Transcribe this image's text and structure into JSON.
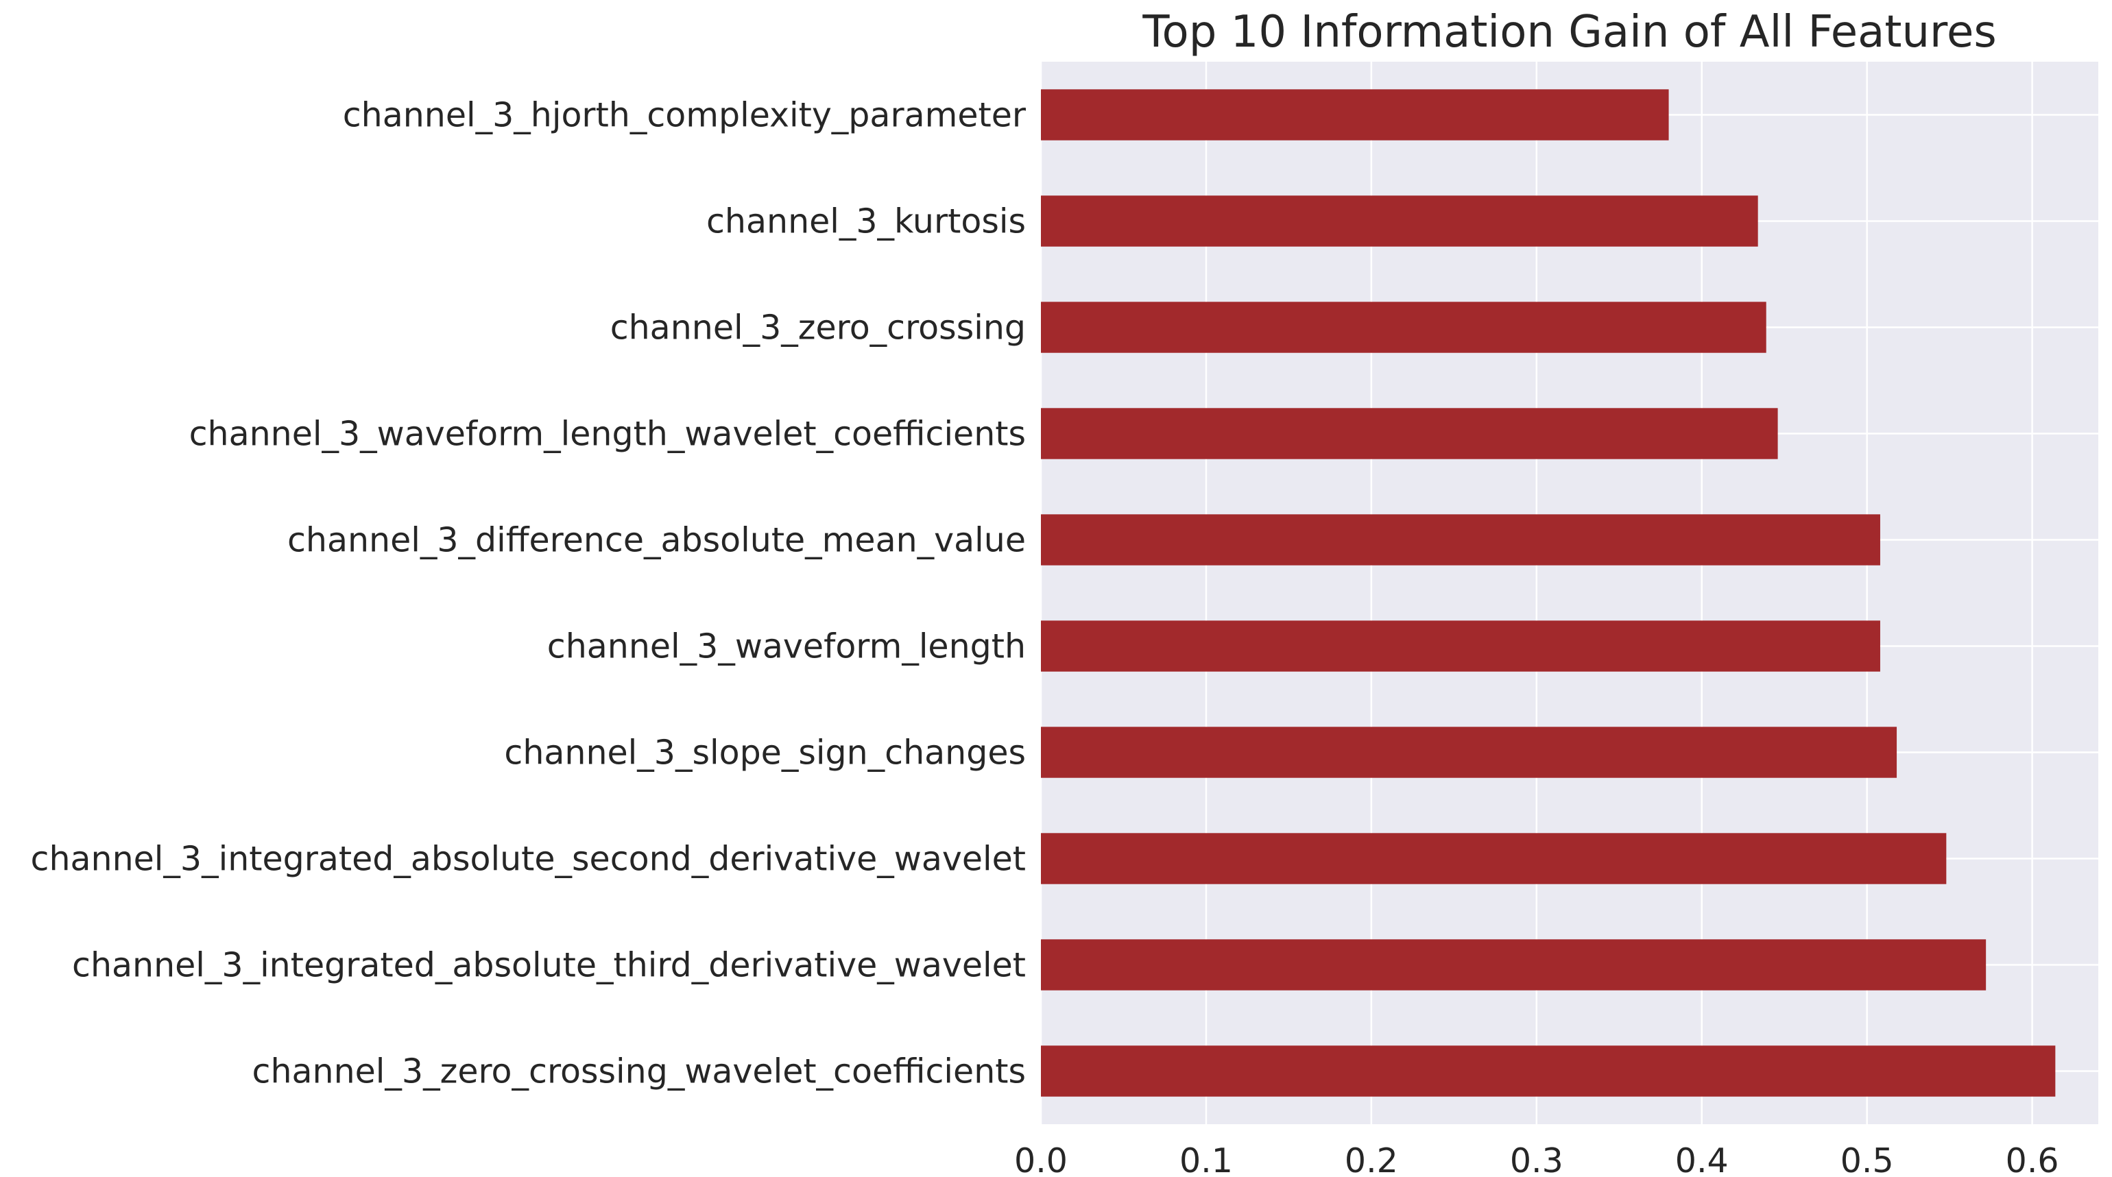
{
  "chart_data": {
    "type": "bar",
    "orientation": "horizontal",
    "title": "Top 10 Information Gain of All Features",
    "xlabel": "",
    "ylabel": "",
    "xlim": [
      0,
      0.64
    ],
    "xticks": [
      "0.0",
      "0.1",
      "0.2",
      "0.3",
      "0.4",
      "0.5",
      "0.6"
    ],
    "grid": true,
    "categories": [
      "channel_3_hjorth_complexity_parameter",
      "channel_3_kurtosis",
      "channel_3_zero_crossing",
      "channel_3_waveform_length_wavelet_coefficients",
      "channel_3_difference_absolute_mean_value",
      "channel_3_waveform_length",
      "channel_3_slope_sign_changes",
      "channel_3_integrated_absolute_second_derivative_wavelet",
      "channel_3_integrated_absolute_third_derivative_wavelet",
      "channel_3_zero_crossing_wavelet_coefficients"
    ],
    "values": [
      0.38,
      0.434,
      0.439,
      0.446,
      0.508,
      0.508,
      0.518,
      0.548,
      0.572,
      0.614
    ],
    "colors": {
      "bar": "#a2292c",
      "plot_bg": "#eaeaf2",
      "grid": "#ffffff",
      "text": "#262626"
    }
  }
}
